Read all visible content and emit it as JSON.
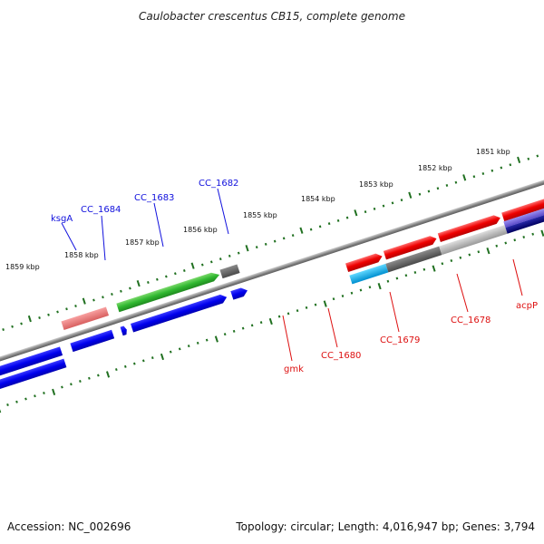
{
  "title": "Caulobacter crescentus CB15, complete genome",
  "footer": {
    "accession": "Accession: NC_002696",
    "summary": "Topology: circular; Length: 4,016,947 bp; Genes: 3,794"
  },
  "scale_labels": [
    "1859 kbp",
    "1858 kbp",
    "1857 kbp",
    "1856 kbp",
    "1855 kbp",
    "1854 kbp",
    "1853 kbp",
    "1852 kbp",
    "1851 kbp"
  ],
  "top_gene_labels": [
    "ksgA",
    "CC_1684",
    "CC_1683",
    "CC_1682"
  ],
  "bottom_gene_labels": [
    "gmk",
    "CC_1680",
    "CC_1679",
    "CC_1678",
    "acpP"
  ],
  "colors": {
    "forward_strand": "#ff0000",
    "reverse_strand": "#0000ff",
    "label_blue": "#1010dd",
    "label_red": "#dd1010",
    "tick_green": "#207020",
    "backbone": "#888888"
  }
}
